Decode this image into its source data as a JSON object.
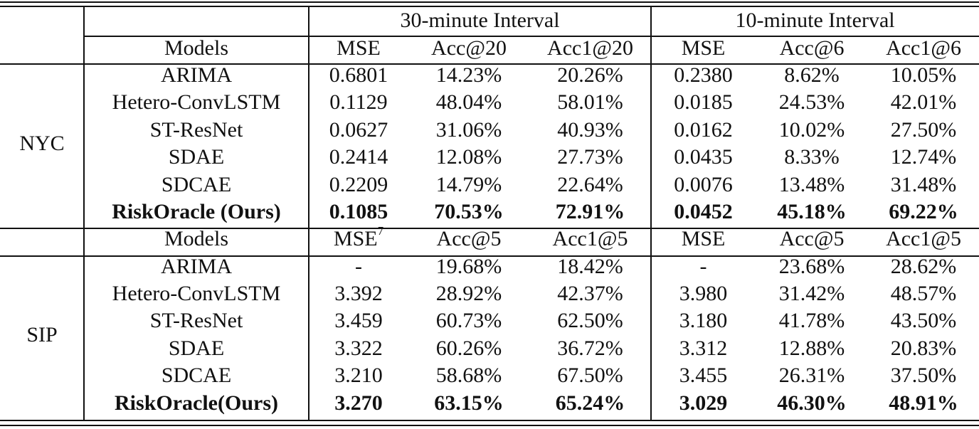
{
  "header": {
    "group1": "30-minute Interval",
    "group2": "10-minute Interval"
  },
  "sections": [
    {
      "dataset": "NYC",
      "models_label": "Models",
      "columns": [
        "MSE",
        "Acc@20",
        "Acc1@20",
        "MSE",
        "Acc@6",
        "Acc1@6"
      ],
      "mse_footnote": "",
      "rows": [
        {
          "model": "ARIMA",
          "values": [
            "0.6801",
            "14.23%",
            "20.26%",
            "0.2380",
            "8.62%",
            "10.05%"
          ]
        },
        {
          "model": "Hetero-ConvLSTM",
          "values": [
            "0.1129",
            "48.04%",
            "58.01%",
            "0.0185",
            "24.53%",
            "42.01%"
          ]
        },
        {
          "model": "ST-ResNet",
          "values": [
            "0.0627",
            "31.06%",
            "40.93%",
            "0.0162",
            "10.02%",
            "27.50%"
          ]
        },
        {
          "model": "SDAE",
          "values": [
            "0.2414",
            "12.08%",
            "27.73%",
            "0.0435",
            "8.33%",
            "12.74%"
          ]
        },
        {
          "model": "SDCAE",
          "values": [
            "0.2209",
            "14.79%",
            "22.64%",
            "0.0076",
            "13.48%",
            "31.48%"
          ]
        },
        {
          "model": "RiskOracle (Ours)",
          "values": [
            "0.1085",
            "70.53%",
            "72.91%",
            "0.0452",
            "45.18%",
            "69.22%"
          ]
        }
      ]
    },
    {
      "dataset": "SIP",
      "models_label": "Models",
      "columns": [
        "MSE",
        "Acc@5",
        "Acc1@5",
        "MSE",
        "Acc@5",
        "Acc1@5"
      ],
      "mse_footnote": "7",
      "rows": [
        {
          "model": "ARIMA",
          "values": [
            "-",
            "19.68%",
            "18.42%",
            "-",
            "23.68%",
            "28.62%"
          ]
        },
        {
          "model": "Hetero-ConvLSTM",
          "values": [
            "3.392",
            "28.92%",
            "42.37%",
            "3.980",
            "31.42%",
            "48.57%"
          ]
        },
        {
          "model": "ST-ResNet",
          "values": [
            "3.459",
            "60.73%",
            "62.50%",
            "3.180",
            "41.78%",
            "43.50%"
          ]
        },
        {
          "model": "SDAE",
          "values": [
            "3.322",
            "60.26%",
            "36.72%",
            "3.312",
            "12.88%",
            "20.83%"
          ]
        },
        {
          "model": "SDCAE",
          "values": [
            "3.210",
            "58.68%",
            "67.50%",
            "3.455",
            "26.31%",
            "37.50%"
          ]
        },
        {
          "model": "RiskOracle(Ours)",
          "values": [
            "3.270",
            "63.15%",
            "65.24%",
            "3.029",
            "46.30%",
            "48.91%"
          ]
        }
      ]
    }
  ]
}
